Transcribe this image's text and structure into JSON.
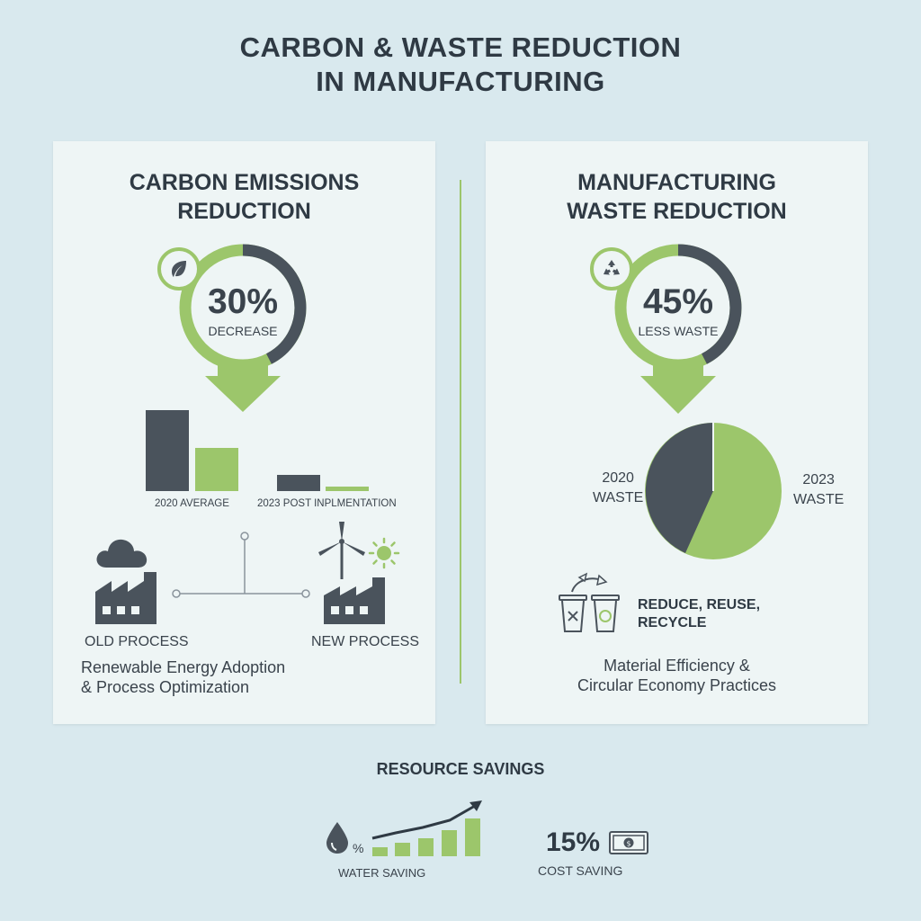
{
  "header": {
    "title_line1": "CARBON & WASTE REDUCTION",
    "title_line2": "IN MANUFACTURING"
  },
  "carbon_panel": {
    "title_line1": "CARBON EMISSIONS",
    "title_line2": "REDUCTION",
    "headline_value": "30%",
    "headline_caption": "DECREASE",
    "bar_labels": [
      "2020 AVERAGE",
      "2023 POST INPLMENTATION"
    ],
    "old_process_label": "OLD PROCESS",
    "new_process_label": "NEW PROCESS",
    "description_line1": "Renewable Energy Adoption",
    "description_line2": "& Process Optimization",
    "icons": [
      "leaf-icon",
      "cloud-icon",
      "factory-icon",
      "wind-turbine-icon",
      "sun-icon"
    ]
  },
  "waste_panel": {
    "title_line1": "MANUFACTURING",
    "title_line2": "WASTE REDUCTION",
    "headline_value": "45%",
    "headline_caption": "LESS WASTE",
    "pie_label_2020_line1": "2020",
    "pie_label_2020_line2": "WASTE",
    "pie_label_2023_line1": "2023",
    "pie_label_2023_line2": "WASTE",
    "rrr_line1": "REDUCE, REUSE,",
    "rrr_line2": "RECYCLE",
    "description_line1": "Material Efficiency &",
    "description_line2": "Circular Economy Practices",
    "icons": [
      "recycle-icon",
      "trash-bin-icon",
      "recycle-bin-icon"
    ]
  },
  "resource_savings": {
    "title": "RESOURCE SAVINGS",
    "water_percent_sign": "%",
    "water_label": "WATER SAVING",
    "cost_value": "15%",
    "cost_label": "COST SAVING",
    "icons": [
      "water-drop-icon",
      "growth-chart-icon",
      "cash-icon"
    ]
  },
  "colors": {
    "green": "#9cc66b",
    "dark": "#4a535c",
    "background": "#d9e9ee",
    "panel": "#eef5f5"
  }
}
